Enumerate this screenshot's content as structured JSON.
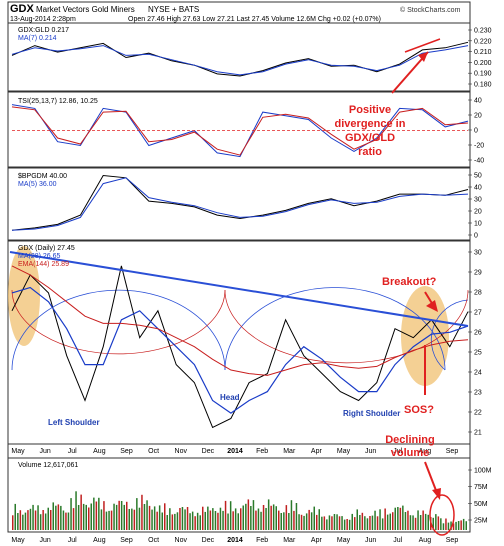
{
  "header": {
    "title_symbol": "GDX",
    "title_name": "Market Vectors Gold Miners",
    "title_exchange": "NYSE + BATS",
    "date": "13-Aug-2014 2:28pm",
    "quote": "Open 27.46  High 27.63  Low 27.21  Last 27.45  Volume 12.6M  Chg +0.02 (+0.07%)",
    "brand": "© StockCharts.com"
  },
  "colors": {
    "price": "#000000",
    "ma": "#1a3cc8",
    "ema": "#c81e1e",
    "trendline": "#2a4fd6",
    "annotation": "#e02020",
    "highlight": "#f0c070",
    "volume_up": "#2a7a2a",
    "volume_down": "#c02020"
  },
  "x_axis": {
    "labels": [
      "May",
      "Jun",
      "Jul",
      "Aug",
      "Sep",
      "Oct",
      "Nov",
      "Dec",
      "2014",
      "Feb",
      "Mar",
      "Apr",
      "May",
      "Jun",
      "Jul",
      "Aug",
      "Sep"
    ]
  },
  "panels": {
    "ratio": {
      "legend1": "GDX:GLD 0.217",
      "legend2": "MA(7) 0.214",
      "ticks": [
        "0.230",
        "0.220",
        "0.210",
        "0.200",
        "0.190",
        "0.180"
      ]
    },
    "tsi": {
      "legend": "TSI(25,13,7) 12.86, 10.25",
      "ticks": [
        "40",
        "20",
        "0",
        "-20",
        "-40"
      ]
    },
    "bpgdm": {
      "legend1": "$BPGDM 40.00",
      "legend2": "MA(5) 36.00",
      "ticks": [
        "50",
        "40",
        "30",
        "20",
        "10",
        "0"
      ]
    },
    "price": {
      "legend1": "GDX (Daily) 27.45",
      "legend2": "MA(28) 26.65",
      "legend3": "EMA(144) 25.89",
      "ticks": [
        "30",
        "29",
        "28",
        "27",
        "26",
        "25",
        "24",
        "23",
        "22",
        "21"
      ]
    },
    "volume": {
      "legend": "Volume 12,617,061",
      "ticks": [
        "100M",
        "75M",
        "50M",
        "25M"
      ]
    }
  },
  "annotations": {
    "positive_div": [
      "Positive",
      "divergence in",
      "GDX/GLD",
      "ratio"
    ],
    "breakout": "Breakout?",
    "sos": "SOS?",
    "declining": [
      "Declining",
      "volume"
    ],
    "left_shoulder": "Left Shoulder",
    "head": "Head",
    "right_shoulder": "Right Shoulder"
  },
  "chart_data": [
    {
      "type": "line",
      "name": "GDX:GLD ratio",
      "ylim": [
        0.175,
        0.232
      ],
      "x": [
        0,
        0.05,
        0.1,
        0.15,
        0.2,
        0.25,
        0.3,
        0.35,
        0.4,
        0.45,
        0.5,
        0.55,
        0.6,
        0.65,
        0.7,
        0.75,
        0.8,
        0.85,
        0.9,
        0.95,
        1.0
      ],
      "series": [
        {
          "name": "GDX:GLD",
          "values": [
            0.205,
            0.214,
            0.208,
            0.212,
            0.216,
            0.203,
            0.207,
            0.2,
            0.196,
            0.188,
            0.186,
            0.191,
            0.198,
            0.202,
            0.195,
            0.196,
            0.19,
            0.197,
            0.21,
            0.212,
            0.217
          ]
        },
        {
          "name": "MA(7)",
          "values": [
            0.206,
            0.212,
            0.209,
            0.211,
            0.214,
            0.205,
            0.206,
            0.201,
            0.196,
            0.19,
            0.187,
            0.19,
            0.197,
            0.201,
            0.196,
            0.195,
            0.191,
            0.196,
            0.207,
            0.21,
            0.214
          ]
        }
      ]
    },
    {
      "type": "line",
      "name": "TSI(25,13,7)",
      "ylim": [
        -45,
        48
      ],
      "x": [
        0,
        0.05,
        0.1,
        0.15,
        0.2,
        0.25,
        0.3,
        0.35,
        0.4,
        0.45,
        0.5,
        0.55,
        0.6,
        0.65,
        0.7,
        0.75,
        0.8,
        0.85,
        0.9,
        0.95,
        1.0
      ],
      "series": [
        {
          "name": "TSI",
          "values": [
            35,
            30,
            -15,
            -20,
            30,
            25,
            -20,
            -10,
            0,
            -30,
            -35,
            25,
            20,
            15,
            -10,
            -28,
            -10,
            30,
            28,
            5,
            12.86
          ]
        },
        {
          "name": "Signal",
          "values": [
            32,
            28,
            -10,
            -18,
            25,
            26,
            -15,
            -12,
            -2,
            -25,
            -33,
            18,
            22,
            17,
            -5,
            -25,
            -12,
            25,
            30,
            8,
            10.25
          ]
        }
      ]
    },
    {
      "type": "line",
      "name": "$BPGDM",
      "ylim": [
        0,
        55
      ],
      "x": [
        0,
        0.05,
        0.1,
        0.15,
        0.2,
        0.25,
        0.3,
        0.35,
        0.4,
        0.45,
        0.5,
        0.55,
        0.6,
        0.65,
        0.7,
        0.75,
        0.8,
        0.85,
        0.9,
        0.95,
        1.0
      ],
      "series": [
        {
          "name": "$BPGDM",
          "values": [
            5,
            7,
            10,
            18,
            52,
            50,
            30,
            28,
            25,
            18,
            15,
            18,
            22,
            28,
            32,
            26,
            30,
            36,
            36,
            35,
            40
          ]
        },
        {
          "name": "MA(5)",
          "values": [
            5,
            6,
            9,
            16,
            45,
            50,
            33,
            29,
            26,
            20,
            16,
            17,
            21,
            27,
            31,
            28,
            29,
            34,
            36,
            35,
            36
          ]
        }
      ]
    },
    {
      "type": "line",
      "name": "GDX (Daily)",
      "ylim": [
        20.3,
        31.0
      ],
      "x": [
        0,
        0.04,
        0.08,
        0.12,
        0.16,
        0.2,
        0.24,
        0.28,
        0.32,
        0.36,
        0.4,
        0.44,
        0.48,
        0.52,
        0.56,
        0.6,
        0.64,
        0.68,
        0.72,
        0.76,
        0.8,
        0.84,
        0.88,
        0.92,
        0.96,
        1.0
      ],
      "series": [
        {
          "name": "GDX",
          "values": [
            27.5,
            29.5,
            28.5,
            25.0,
            22.5,
            25.5,
            30.0,
            26.0,
            27.5,
            24.5,
            23.5,
            21.0,
            21.5,
            23.5,
            24.0,
            27.0,
            25.0,
            24.0,
            23.0,
            22.5,
            23.5,
            26.5,
            26.0,
            27.0,
            25.5,
            27.45
          ]
        },
        {
          "name": "MA(28)",
          "values": [
            28.5,
            28.8,
            28.0,
            26.5,
            24.5,
            24.5,
            27.0,
            27.5,
            26.5,
            25.5,
            24.5,
            22.5,
            21.8,
            22.5,
            23.0,
            24.5,
            25.5,
            24.8,
            23.8,
            23.0,
            23.0,
            24.5,
            25.5,
            26.2,
            26.3,
            26.65
          ]
        },
        {
          "name": "EMA(144)",
          "values": [
            30.0,
            29.5,
            28.8,
            28.0,
            27.2,
            26.8,
            26.8,
            26.7,
            26.5,
            26.0,
            25.5,
            24.8,
            24.2,
            24.0,
            23.9,
            24.2,
            24.5,
            24.6,
            24.4,
            24.3,
            24.4,
            24.9,
            25.3,
            25.6,
            25.8,
            25.89
          ]
        }
      ]
    },
    {
      "type": "bar",
      "name": "Volume",
      "ylim": [
        0,
        110
      ],
      "categories": [
        "May",
        "Jun",
        "Jul",
        "Aug",
        "Sep",
        "Oct",
        "Nov",
        "Dec",
        "2014",
        "Feb",
        "Mar",
        "Apr",
        "May",
        "Jun",
        "Jul",
        "Aug"
      ],
      "values": [
        45,
        50,
        65,
        55,
        60,
        45,
        42,
        50,
        55,
        50,
        40,
        30,
        35,
        45,
        35,
        20
      ]
    }
  ]
}
